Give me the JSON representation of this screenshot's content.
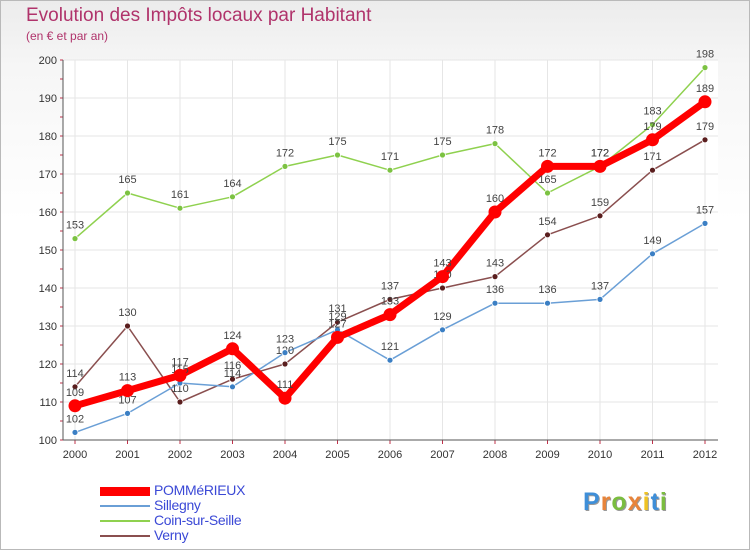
{
  "chart_data": {
    "type": "line",
    "title": "Evolution des Impôts locaux par Habitant",
    "subtitle": "(en € et par an)",
    "x": [
      "2000",
      "2001",
      "2002",
      "2003",
      "2004",
      "2005",
      "2006",
      "2007",
      "2008",
      "2009",
      "2010",
      "2011",
      "2012"
    ],
    "ylim": [
      100,
      200
    ],
    "yticks": [
      100,
      110,
      120,
      130,
      140,
      150,
      160,
      170,
      180,
      190,
      200
    ],
    "grid": true,
    "legend_position": "bottom-left",
    "series": [
      {
        "name": "Coin-sur-Seille",
        "color": "#8fd14f",
        "marker": "#7cc242",
        "values": [
          153,
          165,
          161,
          164,
          172,
          175,
          171,
          175,
          178,
          165,
          172,
          183,
          198
        ]
      },
      {
        "name": "Verny",
        "color": "#8a4f4f",
        "marker": "#5a1e1e",
        "values": [
          114,
          130,
          110,
          116,
          120,
          131,
          137,
          140,
          143,
          154,
          159,
          171,
          179
        ]
      },
      {
        "name": "Sillegny",
        "color": "#6a9fd6",
        "marker": "#3b7fc4",
        "values": [
          102,
          107,
          115,
          114,
          123,
          129,
          121,
          129,
          136,
          136,
          137,
          149,
          157
        ]
      },
      {
        "name": "POMMéRIEUX",
        "color": "#ff0000",
        "marker": "#ff0000",
        "values": [
          109,
          113,
          117,
          124,
          111,
          127,
          133,
          143,
          160,
          172,
          172,
          179,
          189
        ]
      }
    ]
  },
  "brand": {
    "letters": [
      "P",
      "r",
      "o",
      "x",
      "i",
      "t",
      "i"
    ],
    "colors": [
      "#3f8fd8",
      "#e8843a",
      "#7bbd3f",
      "#e8843a",
      "#f0c323",
      "#3f8fd8",
      "#7bbd3f"
    ]
  }
}
